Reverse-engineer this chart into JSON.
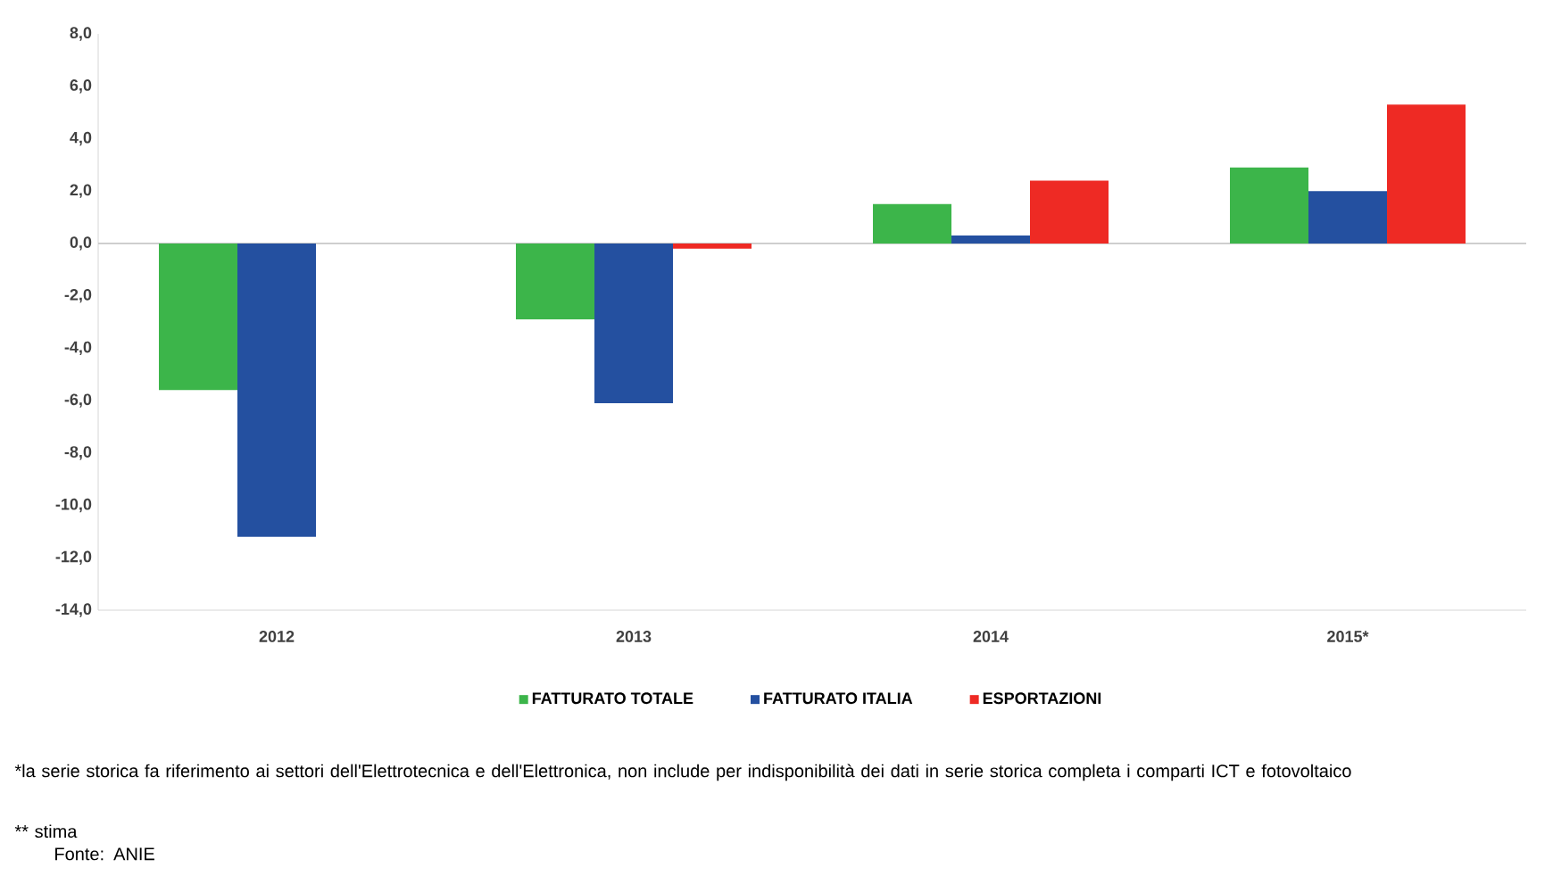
{
  "chart_data": {
    "type": "bar",
    "categories": [
      "2012",
      "2013",
      "2014",
      "2015*"
    ],
    "series": [
      {
        "name": "FATTURATO TOTALE",
        "color": "#3cb54a",
        "values": [
          -5.6,
          -2.9,
          1.5,
          2.9
        ]
      },
      {
        "name": "FATTURATO ITALIA",
        "color": "#2450a0",
        "values": [
          -11.2,
          -6.1,
          0.3,
          2.0
        ]
      },
      {
        "name": "ESPORTAZIONI",
        "color": "#ee2a24",
        "values": [
          null,
          -0.2,
          2.4,
          5.3
        ]
      }
    ],
    "ylim": [
      -14,
      8
    ],
    "yticks": [
      {
        "value": -14,
        "label": "-14,0"
      },
      {
        "value": -12,
        "label": "-12,0"
      },
      {
        "value": -10,
        "label": "-10,0"
      },
      {
        "value": -8,
        "label": "-8,0"
      },
      {
        "value": -6,
        "label": "-6,0"
      },
      {
        "value": -4,
        "label": "-4,0"
      },
      {
        "value": -2,
        "label": "-2,0"
      },
      {
        "value": 0,
        "label": "0,0"
      },
      {
        "value": 2,
        "label": "2,0"
      },
      {
        "value": 4,
        "label": "4,0"
      },
      {
        "value": 6,
        "label": "6,0"
      },
      {
        "value": 8,
        "label": "8,0"
      }
    ],
    "ref_lines": [
      {
        "axis": "y",
        "value": 0,
        "color": "#c8c8c8"
      }
    ],
    "legend": "bottom",
    "annotations": [
      "*la serie storica fa riferimento ai settori dell'Elettrotecnica e dell'Elettronica, non include per indisponibilità dei dati  in serie storica completa i comparti  ICT e fotovoltaico",
      "** stima",
      "Fonte: ANIE"
    ]
  }
}
